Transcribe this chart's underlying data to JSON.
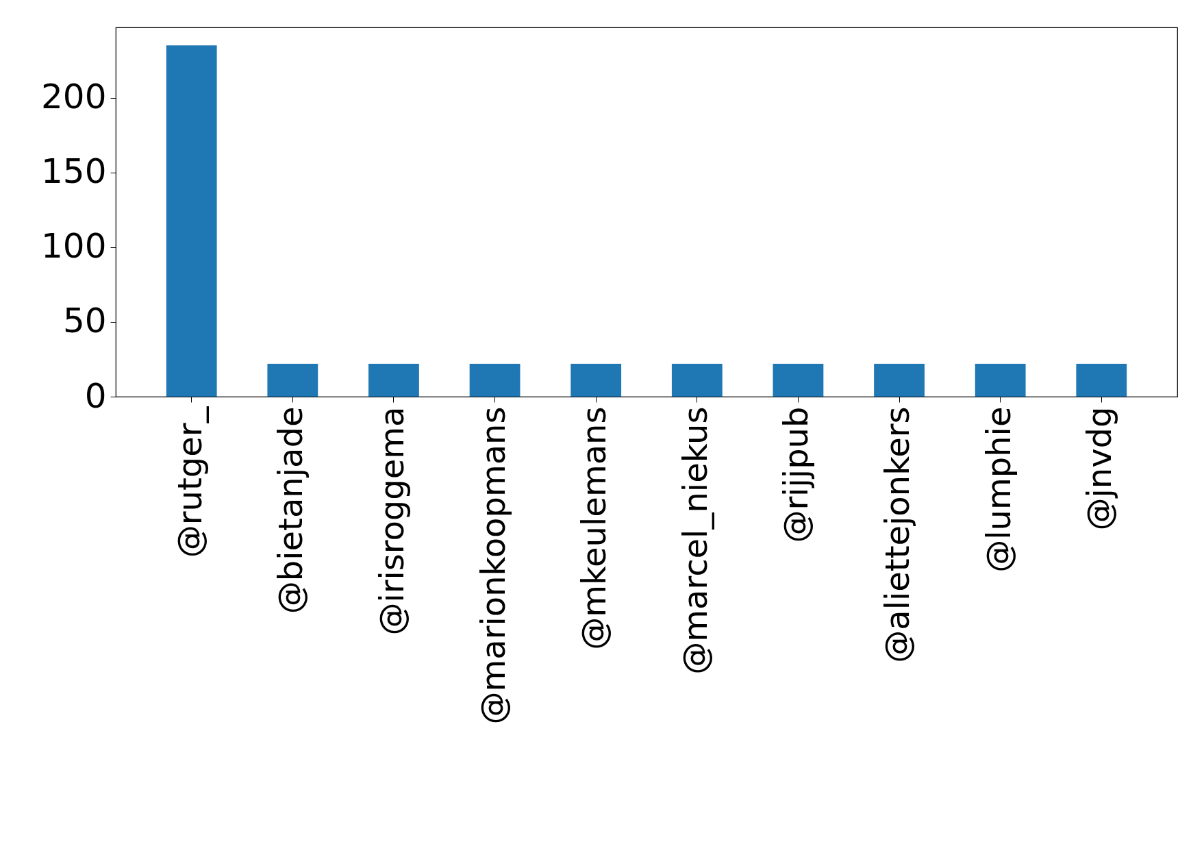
{
  "chart_data": {
    "type": "bar",
    "categories": [
      "@rutger_",
      "@bietanjade",
      "@irisroggema",
      "@marionkoopmans",
      "@mkeulemans",
      "@marcel_niekus",
      "@rijjpub",
      "@aliettejonkers",
      "@lumphie",
      "@jnvdg"
    ],
    "values": [
      235,
      22,
      22,
      22,
      22,
      22,
      22,
      22,
      22,
      22
    ],
    "color": "#1f77b4",
    "ylim": [
      0,
      247
    ],
    "yticks": [
      0,
      50,
      100,
      150,
      200
    ],
    "grid": false
  }
}
